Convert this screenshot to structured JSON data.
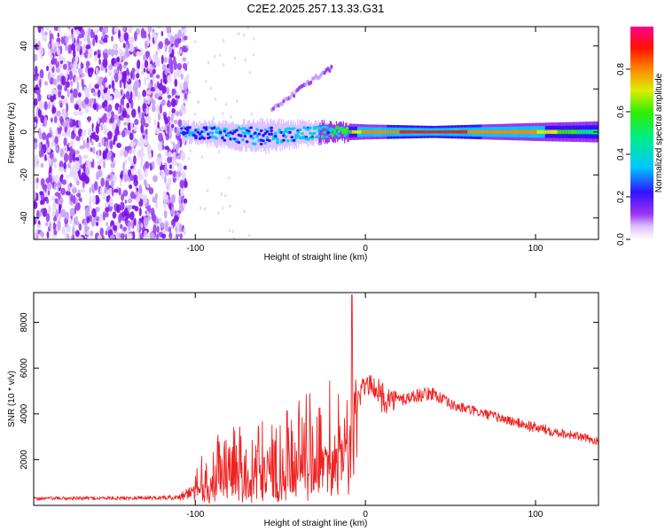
{
  "title": "C2E2.2025.257.13.33.G31",
  "chart_data": [
    {
      "type": "heatmap",
      "panel": "spectrogram",
      "xlabel": "Height of straight line (km)",
      "ylabel": "Frequency (Hz)",
      "xlim": [
        -195,
        137
      ],
      "ylim": [
        -50,
        49
      ],
      "xticks": [
        -100,
        0,
        100
      ],
      "xtick_labels": [
        "-100",
        "0",
        "100"
      ],
      "yticks": [
        -40,
        -20,
        0,
        20,
        40
      ],
      "ytick_labels": [
        "-40",
        "-20",
        "0",
        "20",
        "40"
      ],
      "noise_region_x": [
        -195,
        -105
      ],
      "signal_band": [
        {
          "x": -108,
          "center_hz": 0,
          "width_hz": 6,
          "amplitude": 0.35
        },
        {
          "x": -60,
          "center_hz": -2,
          "width_hz": 10,
          "amplitude": 0.4
        },
        {
          "x": -20,
          "center_hz": 0,
          "width_hz": 6,
          "amplitude": 0.5
        },
        {
          "x": 0,
          "center_hz": 0,
          "width_hz": 5,
          "amplitude": 0.85
        },
        {
          "x": 40,
          "center_hz": 0,
          "width_hz": 4,
          "amplitude": 0.95
        },
        {
          "x": 100,
          "center_hz": 0,
          "width_hz": 6,
          "amplitude": 0.8
        },
        {
          "x": 137,
          "center_hz": 0,
          "width_hz": 7,
          "amplitude": 0.5
        }
      ],
      "harmonic_branch": [
        {
          "x": -55,
          "hz": 10
        },
        {
          "x": -35,
          "hz": 22
        },
        {
          "x": -20,
          "hz": 30
        }
      ],
      "colorbar": {
        "label": "Normalized spectral amplitude",
        "range": [
          0,
          1
        ],
        "ticks": [
          0.0,
          0.2,
          0.4,
          0.6,
          0.8
        ],
        "tick_labels": [
          "0.0",
          "0.2",
          "0.4",
          "0.6",
          "0.8"
        ]
      }
    },
    {
      "type": "line",
      "panel": "snr",
      "xlabel": "Height of straight line (km)",
      "ylabel": "SNR (10 * v/v)",
      "xlim": [
        -195,
        137
      ],
      "ylim": [
        0,
        9300
      ],
      "xticks": [
        -100,
        0,
        100
      ],
      "xtick_labels": [
        "-100",
        "0",
        "100"
      ],
      "yticks": [
        2000,
        4000,
        6000,
        8000
      ],
      "ytick_labels": [
        "2000",
        "4000",
        "6000",
        "8000"
      ],
      "series": [
        {
          "name": "SNR",
          "color": "#ee2222",
          "envelope": {
            "x": [
              -195,
              -150,
              -110,
              -100,
              -90,
              -80,
              -70,
              -60,
              -50,
              -40,
              -30,
              -20,
              -15,
              -10,
              -5,
              0,
              5,
              10,
              20,
              30,
              40,
              50,
              60,
              80,
              100,
              120,
              137
            ],
            "baseline": [
              300,
              320,
              350,
              700,
              900,
              1000,
              1100,
              1300,
              1400,
              1600,
              1800,
              2300,
              2600,
              3000,
              4500,
              5300,
              5200,
              4700,
              4600,
              4800,
              4900,
              4400,
              4200,
              3800,
              3400,
              3100,
              2800
            ],
            "spread": [
              150,
              150,
              200,
              1100,
              2000,
              2500,
              2400,
              2700,
              2600,
              3000,
              3400,
              3800,
              3500,
              4200,
              1500,
              900,
              900,
              1500,
              700,
              600,
              600,
              500,
              450,
              450,
              500,
              400,
              350
            ]
          },
          "peak": {
            "x": -8,
            "y": 9200
          }
        }
      ]
    }
  ],
  "colors": {
    "axis": "#000000",
    "line": "#ee2222",
    "colorbar_stops": [
      "#ffffff",
      "#cc99ff",
      "#8800dd",
      "#2200ff",
      "#00ddff",
      "#00ee44",
      "#ffee00",
      "#ff7700",
      "#ff0000",
      "#ff00aa"
    ]
  }
}
